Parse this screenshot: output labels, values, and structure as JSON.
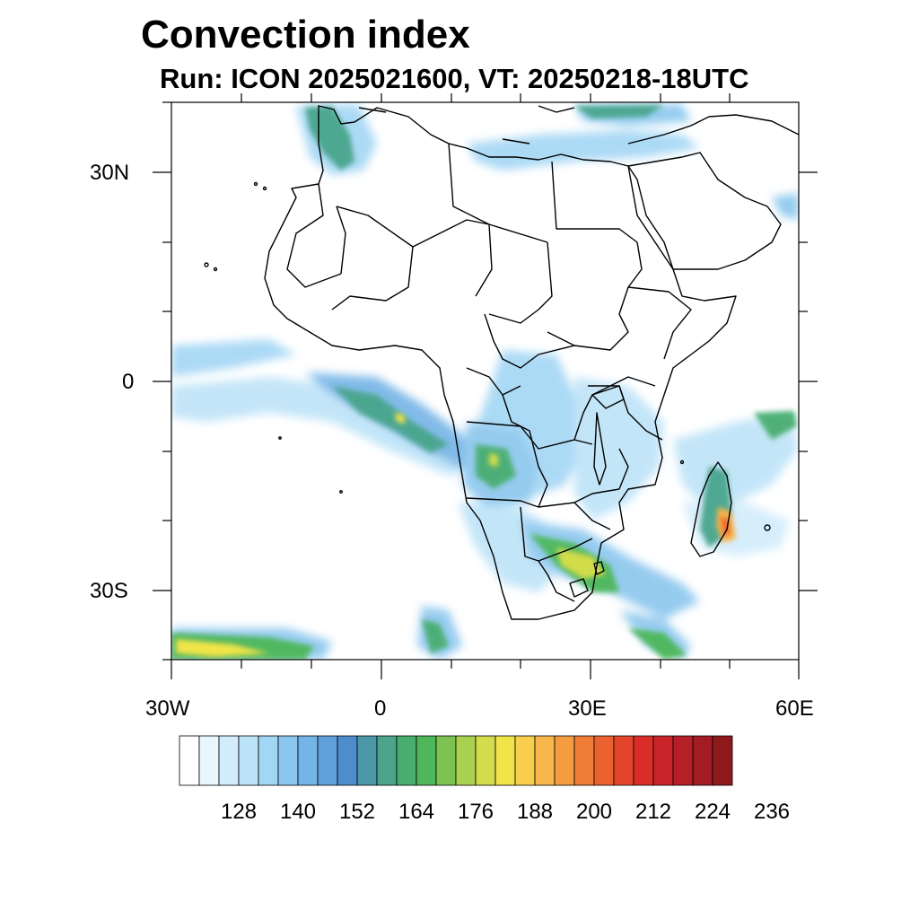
{
  "title": "Convection index",
  "subtitle": "Run: ICON 2025021600,  VT: 20250218-18UTC",
  "lat_labels": [
    "30N",
    "0",
    "30S"
  ],
  "lon_labels": [
    "30W",
    "0",
    "30E",
    "60E"
  ],
  "map": {
    "region": "Africa",
    "lon_range": [
      -30,
      60
    ],
    "lat_range": [
      -40,
      40
    ],
    "field": "convection index"
  },
  "colorbar": {
    "colors": [
      "#ffffff",
      "#e9f6fd",
      "#d2ecfb",
      "#bde3f8",
      "#a3d6f4",
      "#8ac6ee",
      "#75b4e6",
      "#5f9fdb",
      "#4d8dce",
      "#4b98a8",
      "#4aa58c",
      "#48ad6f",
      "#4db75a",
      "#7cc353",
      "#a9d04e",
      "#d2dc4c",
      "#f1e44a",
      "#f8cf4d",
      "#f8b549",
      "#f59b40",
      "#f07d37",
      "#eb612f",
      "#e3462a",
      "#db2d28",
      "#c8242a",
      "#b51f28",
      "#a31c24",
      "#8e1a1e"
    ],
    "tick_labels": [
      "128",
      "140",
      "152",
      "164",
      "176",
      "188",
      "200",
      "212",
      "224",
      "236"
    ]
  }
}
